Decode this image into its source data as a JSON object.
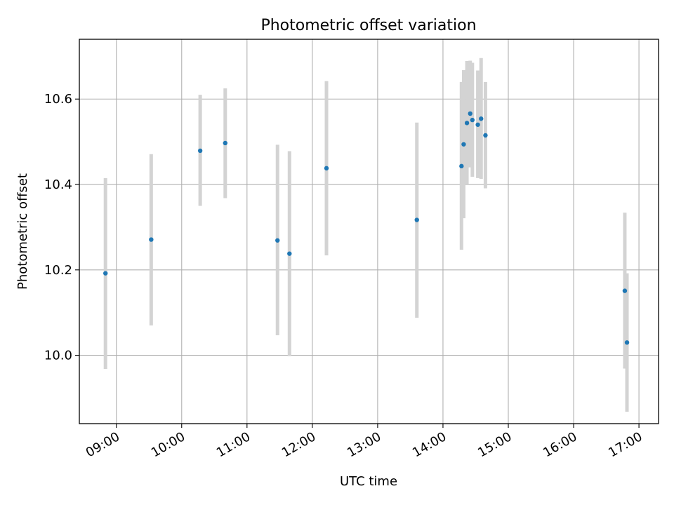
{
  "chart_data": {
    "type": "scatter",
    "title": "Photometric offset variation",
    "xlabel": "UTC time",
    "ylabel": "Photometric offset",
    "x_ticks": [
      "09:00",
      "10:00",
      "11:00",
      "12:00",
      "13:00",
      "14:00",
      "15:00",
      "16:00",
      "17:00"
    ],
    "y_ticks": [
      "10.0",
      "10.2",
      "10.4",
      "10.6"
    ],
    "xlim": [
      "08:26",
      "17:18"
    ],
    "ylim": [
      9.84,
      10.74
    ],
    "grid": true,
    "marker_color": "#1f77b4",
    "errorbar_color": "#d3d3d3",
    "series": [
      {
        "points": [
          {
            "x": "08:50",
            "y": 10.192,
            "ylow": 9.968,
            "yhigh": 10.415
          },
          {
            "x": "09:32",
            "y": 10.271,
            "ylow": 10.07,
            "yhigh": 10.471
          },
          {
            "x": "10:17",
            "y": 10.479,
            "ylow": 10.35,
            "yhigh": 10.61
          },
          {
            "x": "10:40",
            "y": 10.497,
            "ylow": 10.368,
            "yhigh": 10.625
          },
          {
            "x": "11:28",
            "y": 10.269,
            "ylow": 10.047,
            "yhigh": 10.493
          },
          {
            "x": "11:39",
            "y": 10.238,
            "ylow": 9.998,
            "yhigh": 10.478
          },
          {
            "x": "12:13",
            "y": 10.438,
            "ylow": 10.234,
            "yhigh": 10.642
          },
          {
            "x": "13:36",
            "y": 10.317,
            "ylow": 10.088,
            "yhigh": 10.545
          },
          {
            "x": "14:17",
            "y": 10.443,
            "ylow": 10.247,
            "yhigh": 10.64
          },
          {
            "x": "14:19",
            "y": 10.494,
            "ylow": 10.321,
            "yhigh": 10.668
          },
          {
            "x": "14:22",
            "y": 10.544,
            "ylow": 10.4,
            "yhigh": 10.689
          },
          {
            "x": "14:25",
            "y": 10.566,
            "ylow": 10.44,
            "yhigh": 10.69
          },
          {
            "x": "14:27",
            "y": 10.551,
            "ylow": 10.418,
            "yhigh": 10.685
          },
          {
            "x": "14:32",
            "y": 10.54,
            "ylow": 10.415,
            "yhigh": 10.667
          },
          {
            "x": "14:35",
            "y": 10.554,
            "ylow": 10.413,
            "yhigh": 10.696
          },
          {
            "x": "14:39",
            "y": 10.515,
            "ylow": 10.391,
            "yhigh": 10.64
          },
          {
            "x": "16:47",
            "y": 10.151,
            "ylow": 9.969,
            "yhigh": 10.334
          },
          {
            "x": "16:49",
            "y": 10.03,
            "ylow": 9.868,
            "yhigh": 10.192
          }
        ]
      }
    ]
  }
}
